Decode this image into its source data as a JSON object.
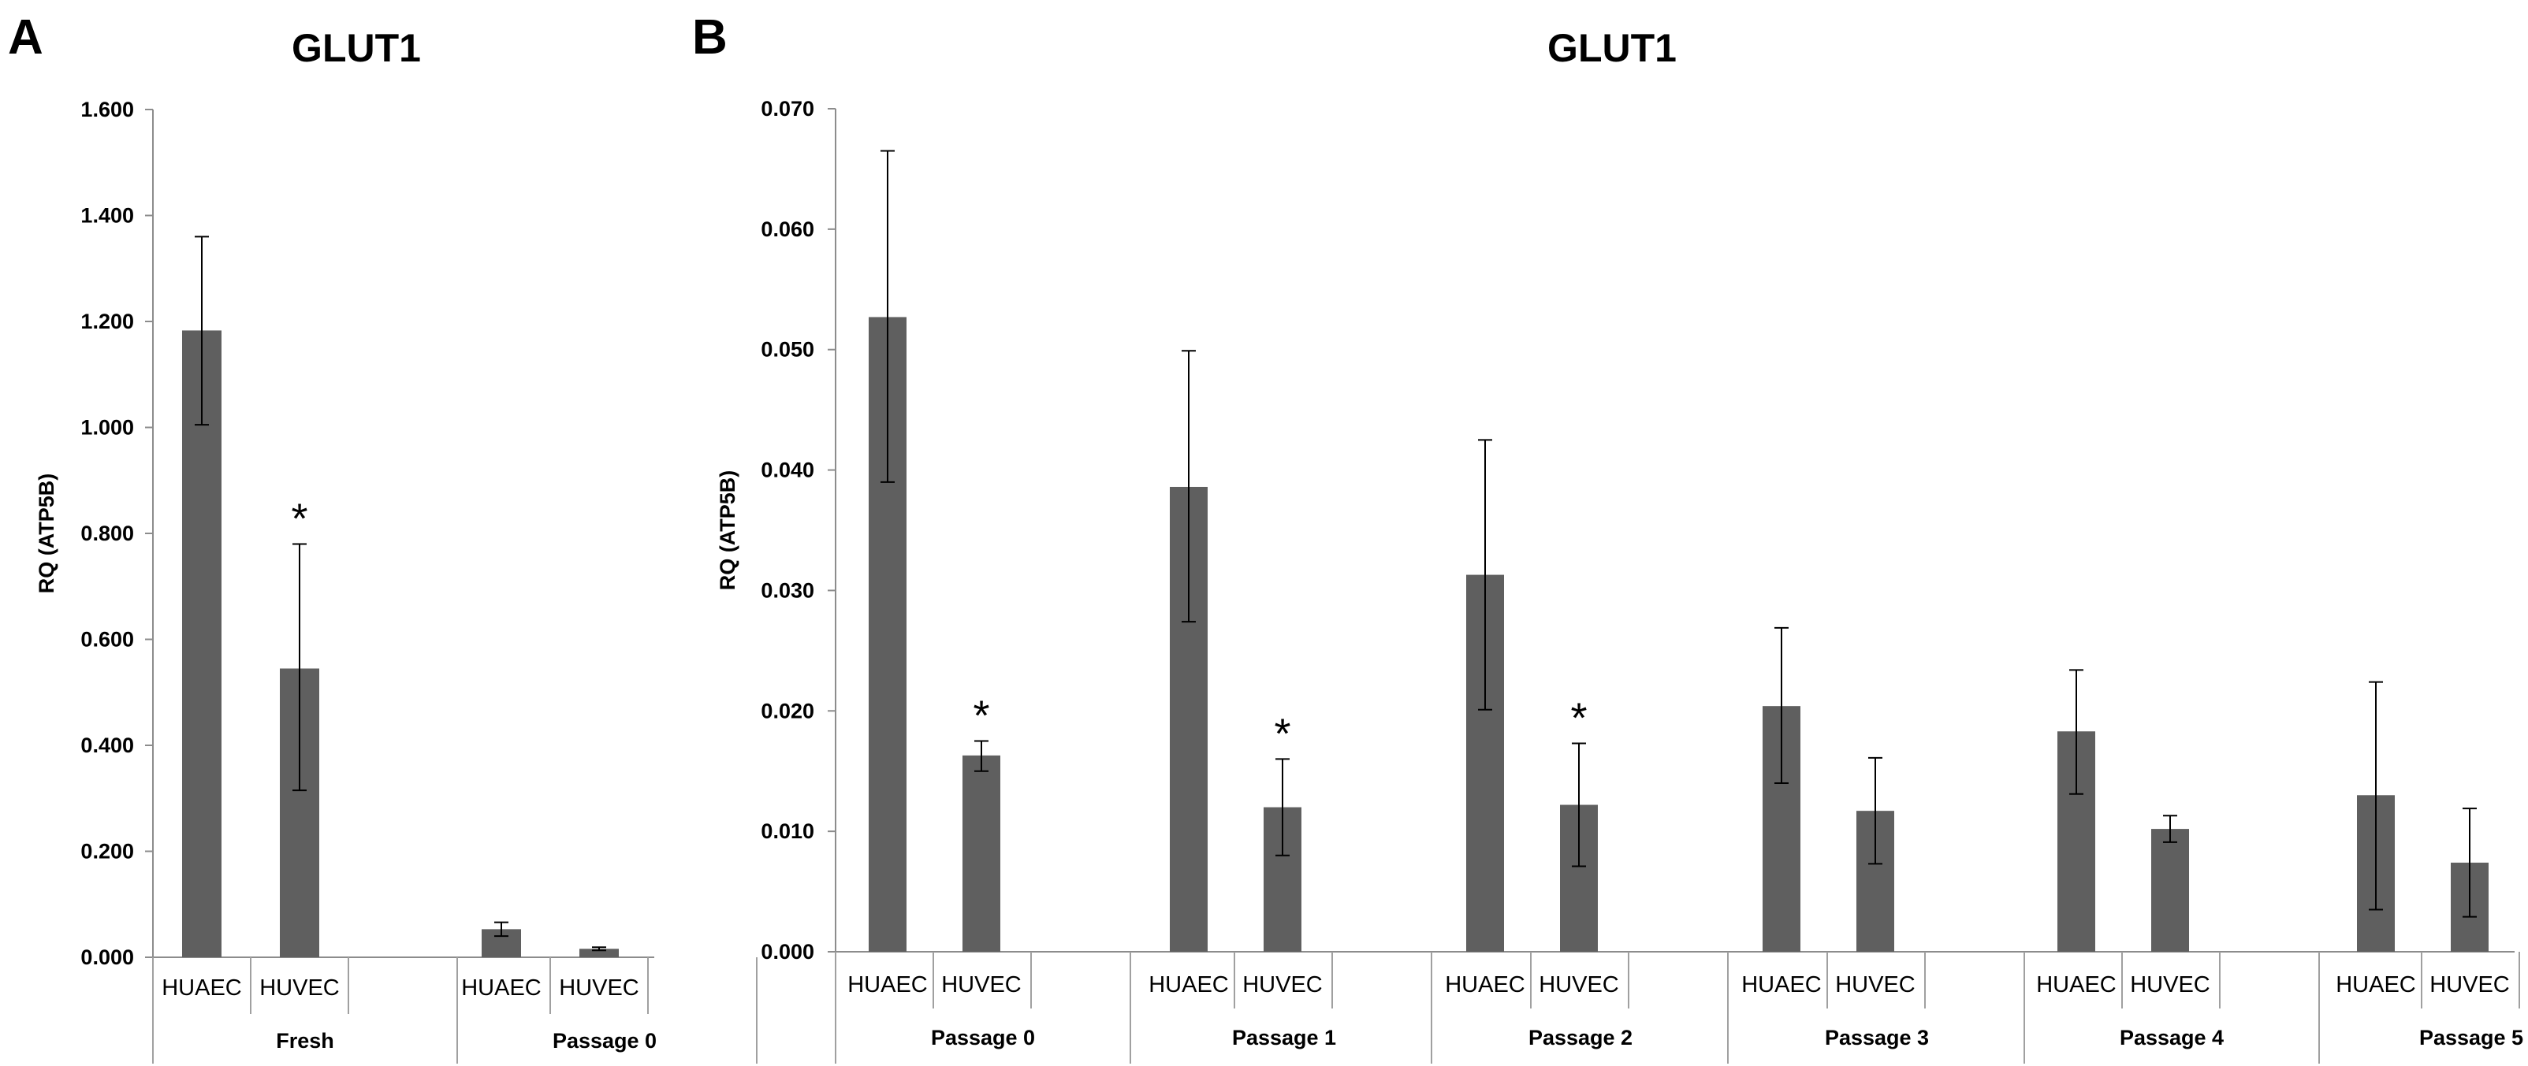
{
  "chart_data": [
    {
      "panel_label": "A",
      "type": "bar",
      "title": "GLUT1",
      "ylabel": "RQ (ATP5B)",
      "xlabel": "",
      "ylim": [
        0,
        1.6
      ],
      "yticks": [
        "0.000",
        "0.200",
        "0.400",
        "0.600",
        "0.800",
        "1.000",
        "1.200",
        "1.400",
        "1.600"
      ],
      "grid": false,
      "legend": "none",
      "bar_color": "#5f5f5f",
      "groups": [
        {
          "label": "Fresh",
          "bars": [
            {
              "category": "HUAEC",
              "value": 1.183,
              "error_low": 1.005,
              "error_high": 1.36,
              "significant": false
            },
            {
              "category": "HUVEC",
              "value": 0.545,
              "error_low": 0.315,
              "error_high": 0.78,
              "significant": true
            }
          ]
        },
        {
          "label": "Passage 0",
          "bars": [
            {
              "category": "HUAEC",
              "value": 0.053,
              "error_low": 0.04,
              "error_high": 0.066,
              "significant": false
            },
            {
              "category": "HUVEC",
              "value": 0.016,
              "error_low": 0.013,
              "error_high": 0.019,
              "significant": false
            }
          ]
        }
      ],
      "significance_marker": "*"
    },
    {
      "panel_label": "B",
      "type": "bar",
      "title": "GLUT1",
      "ylabel": "RQ (ATP5B)",
      "xlabel": "",
      "ylim": [
        0,
        0.07
      ],
      "yticks": [
        "0.000",
        "0.010",
        "0.020",
        "0.030",
        "0.040",
        "0.050",
        "0.060",
        "0.070"
      ],
      "grid": false,
      "legend": "none",
      "bar_color": "#5f5f5f",
      "groups": [
        {
          "label": "Passage 0",
          "bars": [
            {
              "category": "HUAEC",
              "value": 0.0527,
              "error_low": 0.039,
              "error_high": 0.0665,
              "significant": false
            },
            {
              "category": "HUVEC",
              "value": 0.0163,
              "error_low": 0.015,
              "error_high": 0.0175,
              "significant": true
            }
          ]
        },
        {
          "label": "Passage 1",
          "bars": [
            {
              "category": "HUAEC",
              "value": 0.0386,
              "error_low": 0.0274,
              "error_high": 0.0499,
              "significant": false
            },
            {
              "category": "HUVEC",
              "value": 0.012,
              "error_low": 0.008,
              "error_high": 0.016,
              "significant": true
            }
          ]
        },
        {
          "label": "Passage 2",
          "bars": [
            {
              "category": "HUAEC",
              "value": 0.0313,
              "error_low": 0.0201,
              "error_high": 0.0425,
              "significant": false
            },
            {
              "category": "HUVEC",
              "value": 0.0122,
              "error_low": 0.0071,
              "error_high": 0.0173,
              "significant": true
            }
          ]
        },
        {
          "label": "Passage 3",
          "bars": [
            {
              "category": "HUAEC",
              "value": 0.0204,
              "error_low": 0.014,
              "error_high": 0.0269,
              "significant": false
            },
            {
              "category": "HUVEC",
              "value": 0.0117,
              "error_low": 0.0073,
              "error_high": 0.0161,
              "significant": false
            }
          ]
        },
        {
          "label": "Passage 4",
          "bars": [
            {
              "category": "HUAEC",
              "value": 0.0183,
              "error_low": 0.0131,
              "error_high": 0.0234,
              "significant": false
            },
            {
              "category": "HUVEC",
              "value": 0.0102,
              "error_low": 0.0091,
              "error_high": 0.0113,
              "significant": false
            }
          ]
        },
        {
          "label": "Passage 5",
          "bars": [
            {
              "category": "HUAEC",
              "value": 0.013,
              "error_low": 0.0035,
              "error_high": 0.0224,
              "significant": false
            },
            {
              "category": "HUVEC",
              "value": 0.0074,
              "error_low": 0.0029,
              "error_high": 0.0119,
              "significant": false
            }
          ]
        }
      ],
      "significance_marker": "*"
    }
  ]
}
